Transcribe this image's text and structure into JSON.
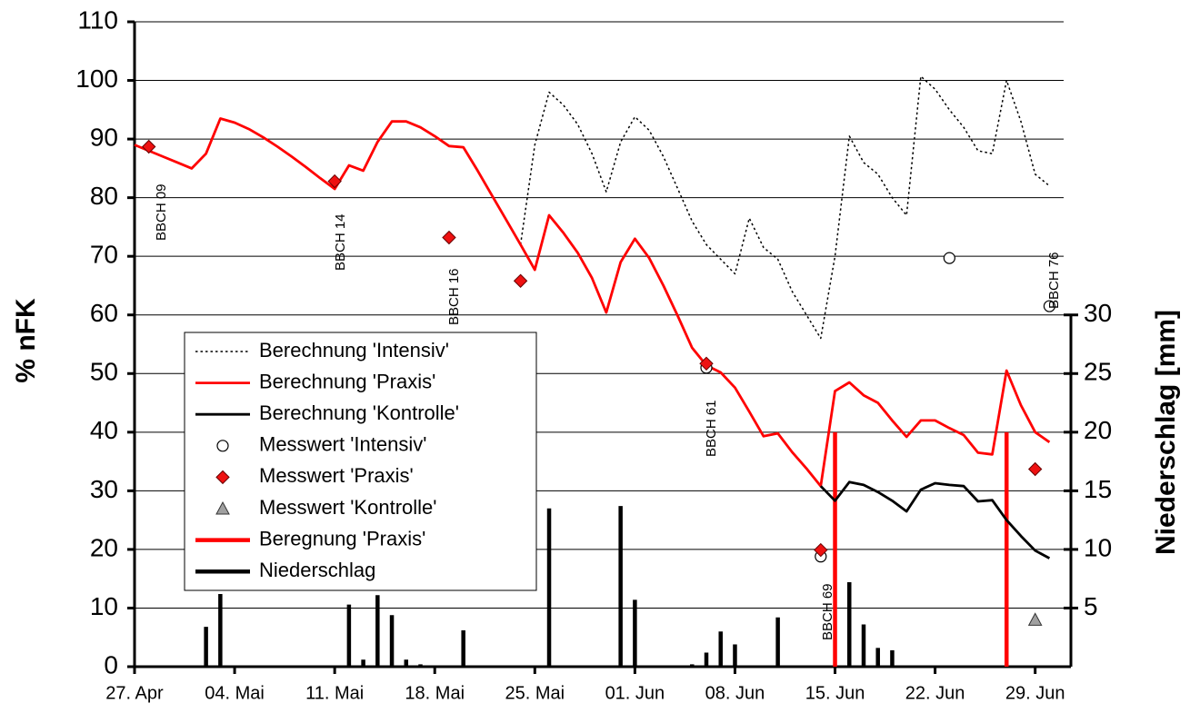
{
  "chart_data": {
    "type": "combo",
    "ylabel": "% nFK",
    "y2label": "Niederschlag [mm]",
    "xlim": [
      0,
      65.5
    ],
    "xticks": [
      {
        "value": 0,
        "label": "27. Apr"
      },
      {
        "value": 7,
        "label": "04. Mai"
      },
      {
        "value": 14,
        "label": "11. Mai"
      },
      {
        "value": 21,
        "label": "18. Mai"
      },
      {
        "value": 28,
        "label": "25. Mai"
      },
      {
        "value": 35,
        "label": "01. Jun"
      },
      {
        "value": 42,
        "label": "08. Jun"
      },
      {
        "value": 49,
        "label": "15. Jun"
      },
      {
        "value": 56,
        "label": "22. Jun"
      },
      {
        "value": 63,
        "label": "29. Jun"
      }
    ],
    "ylim": [
      0,
      110
    ],
    "yticks": [
      0,
      10,
      20,
      30,
      40,
      50,
      60,
      70,
      80,
      90,
      100,
      110
    ],
    "y2lim": [
      0,
      55
    ],
    "y2ticks": [
      5,
      10,
      15,
      20,
      25,
      30
    ],
    "grid": true,
    "legend": "center left",
    "annotations": [
      "BBCH 09",
      "BBCH 14",
      "BBCH 16",
      "BBCH 61",
      "BBCH 69",
      "BBCH 76"
    ],
    "x": [
      0,
      1,
      2,
      3,
      4,
      5,
      6,
      7,
      8,
      9,
      10,
      11,
      12,
      13,
      14,
      15,
      16,
      17,
      18,
      19,
      20,
      21,
      22,
      23,
      24,
      25,
      26,
      27,
      28,
      29,
      30,
      31,
      32,
      33,
      34,
      35,
      36,
      37,
      38,
      39,
      40,
      41,
      42,
      43,
      44,
      45,
      46,
      47,
      48,
      49,
      50,
      51,
      52,
      53,
      54,
      55,
      56,
      57,
      58,
      59,
      60,
      61,
      62,
      63,
      64
    ],
    "series": [
      {
        "name": "Berechnung 'Intensiv'",
        "type": "line",
        "linestyle": "dotted",
        "color": "#000000",
        "values": [
          null,
          null,
          null,
          null,
          null,
          null,
          null,
          null,
          null,
          null,
          null,
          null,
          null,
          null,
          null,
          null,
          null,
          null,
          null,
          null,
          null,
          null,
          null,
          null,
          null,
          null,
          null,
          72,
          89,
          98,
          95.8,
          92.5,
          87.5,
          81,
          89.5,
          93.8,
          91.5,
          87,
          81.5,
          76,
          72,
          69.5,
          67,
          76.5,
          71.5,
          69.5,
          64,
          60,
          56,
          70,
          90.5,
          86,
          84,
          80,
          77,
          100.7,
          98.5,
          95,
          92,
          88,
          87.5,
          100,
          93,
          84,
          82
        ]
      },
      {
        "name": "Berechnung 'Praxis'",
        "type": "line",
        "linestyle": "solid",
        "color": "#ff0000",
        "values": [
          89,
          88,
          87,
          86,
          85,
          87.5,
          93.5,
          92.8,
          91.7,
          90.3,
          88.7,
          87,
          85.2,
          83.3,
          81.5,
          85.5,
          84.6,
          89.5,
          93,
          93,
          92,
          90.5,
          88.8,
          88.6,
          84.6,
          80.4,
          76.2,
          72,
          67.7,
          77,
          74,
          70.6,
          66.3,
          60.4,
          69,
          73,
          69.7,
          65,
          59.8,
          54.4,
          51.4,
          50.2,
          47.6,
          43.5,
          39.3,
          39.8,
          36.6,
          33.8,
          30.8,
          47,
          48.5,
          46.3,
          45,
          42,
          39.2,
          42,
          42,
          40.7,
          39.5,
          36.5,
          36.2,
          50.5,
          44.6,
          40,
          38.3
        ]
      },
      {
        "name": "Berechnung 'Kontrolle'",
        "type": "line",
        "linestyle": "solid",
        "color": "#000000",
        "values": [
          null,
          null,
          null,
          null,
          null,
          null,
          null,
          null,
          null,
          null,
          null,
          null,
          null,
          null,
          null,
          null,
          null,
          null,
          null,
          null,
          null,
          null,
          null,
          null,
          null,
          null,
          null,
          null,
          null,
          null,
          null,
          null,
          null,
          null,
          null,
          null,
          null,
          null,
          null,
          null,
          null,
          null,
          null,
          null,
          null,
          null,
          null,
          null,
          30.8,
          28.3,
          31.5,
          31,
          29.8,
          28.3,
          26.5,
          30.2,
          31.3,
          31,
          30.8,
          28.2,
          28.4,
          25,
          22.3,
          19.8,
          18.5
        ]
      },
      {
        "name": "Messwert 'Intensiv'",
        "type": "scatter",
        "marker": "circle",
        "color": "#ffffff",
        "values": [
          null,
          null,
          null,
          null,
          null,
          null,
          null,
          null,
          null,
          null,
          null,
          null,
          null,
          null,
          null,
          null,
          null,
          null,
          null,
          null,
          null,
          null,
          null,
          null,
          null,
          null,
          null,
          null,
          null,
          null,
          null,
          null,
          null,
          null,
          null,
          null,
          null,
          null,
          null,
          null,
          51,
          null,
          null,
          null,
          null,
          null,
          null,
          null,
          18.8,
          null,
          null,
          null,
          null,
          null,
          null,
          null,
          null,
          69.7,
          null,
          null,
          null,
          null,
          null,
          null,
          61.5
        ]
      },
      {
        "name": "Messwert 'Praxis'",
        "type": "scatter",
        "marker": "diamond",
        "color": "#ee1111",
        "values": [
          null,
          88.7,
          null,
          null,
          null,
          null,
          null,
          null,
          null,
          null,
          null,
          null,
          null,
          null,
          82.8,
          null,
          null,
          null,
          null,
          null,
          null,
          null,
          73.2,
          null,
          null,
          null,
          null,
          65.8,
          null,
          null,
          null,
          null,
          null,
          null,
          null,
          null,
          null,
          null,
          null,
          null,
          51.7,
          null,
          null,
          null,
          null,
          null,
          null,
          null,
          19.9,
          null,
          null,
          null,
          null,
          null,
          null,
          null,
          null,
          null,
          null,
          null,
          null,
          null,
          null,
          33.7,
          null
        ]
      },
      {
        "name": "Messwert 'Kontrolle'",
        "type": "scatter",
        "marker": "triangle",
        "color": "#a0a0a0",
        "values": [
          null,
          null,
          null,
          null,
          null,
          null,
          null,
          null,
          null,
          null,
          null,
          null,
          null,
          null,
          null,
          null,
          null,
          null,
          null,
          null,
          null,
          null,
          null,
          null,
          null,
          null,
          null,
          null,
          null,
          null,
          null,
          null,
          null,
          null,
          null,
          null,
          null,
          null,
          null,
          null,
          null,
          null,
          null,
          null,
          null,
          null,
          null,
          null,
          null,
          null,
          null,
          null,
          null,
          null,
          null,
          null,
          null,
          null,
          null,
          null,
          null,
          null,
          null,
          8,
          null
        ]
      },
      {
        "name": "Beregnung 'Praxis'",
        "type": "bar",
        "axis": "y2",
        "color": "#ff0000",
        "values": [
          null,
          null,
          null,
          null,
          null,
          null,
          null,
          null,
          null,
          null,
          null,
          null,
          null,
          null,
          null,
          null,
          null,
          null,
          null,
          null,
          null,
          null,
          null,
          null,
          null,
          null,
          null,
          null,
          null,
          null,
          null,
          null,
          null,
          null,
          null,
          null,
          null,
          null,
          null,
          null,
          null,
          null,
          null,
          null,
          null,
          null,
          null,
          null,
          null,
          20,
          null,
          null,
          null,
          null,
          null,
          null,
          null,
          null,
          null,
          null,
          null,
          20,
          null,
          null,
          null
        ]
      },
      {
        "name": "Niederschlag",
        "type": "bar",
        "axis": "y2",
        "color": "#000000",
        "values": [
          null,
          null,
          null,
          null,
          null,
          3.4,
          6.2,
          null,
          null,
          null,
          null,
          null,
          null,
          null,
          null,
          5.3,
          0.6,
          6.1,
          4.4,
          0.6,
          0.2,
          null,
          null,
          3.1,
          null,
          null,
          null,
          null,
          null,
          13.5,
          null,
          null,
          null,
          null,
          13.7,
          5.7,
          null,
          null,
          null,
          0.2,
          1.2,
          3,
          1.9,
          null,
          null,
          4.2,
          null,
          null,
          null,
          null,
          7.2,
          3.6,
          1.6,
          1.4,
          null,
          null,
          null,
          null,
          null,
          null,
          null,
          null,
          null,
          null,
          null
        ]
      }
    ]
  }
}
